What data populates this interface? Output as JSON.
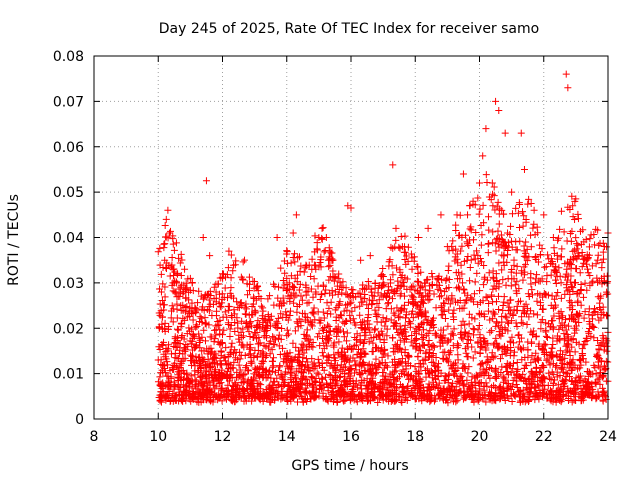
{
  "chart_data": {
    "type": "scatter",
    "title": "Day 245 of 2025, Rate Of TEC Index for receiver samo",
    "xlabel": "GPS time / hours",
    "ylabel": "ROTI / TECUs",
    "xlim": [
      8,
      24
    ],
    "ylim": [
      0,
      0.08
    ],
    "xticks": [
      8,
      10,
      12,
      14,
      16,
      18,
      20,
      22,
      24
    ],
    "xtick_labels": [
      "8",
      "10",
      "12",
      "14",
      "16",
      "18",
      "20",
      "22",
      "24"
    ],
    "yticks": [
      0,
      0.01,
      0.02,
      0.03,
      0.04,
      0.05,
      0.06,
      0.07,
      0.08
    ],
    "ytick_labels": [
      "0",
      "0.01",
      "0.02",
      "0.03",
      "0.04",
      "0.05",
      "0.06",
      "0.07",
      "0.08"
    ],
    "grid": true,
    "marker": "plus",
    "marker_color": "#ff0000",
    "series": [
      {
        "values": [
          [
            10.0,
            0.013
          ],
          [
            10.1,
            0.028
          ],
          [
            10.2,
            0.035
          ],
          [
            10.25,
            0.044
          ],
          [
            10.3,
            0.046
          ],
          [
            10.35,
            0.041
          ],
          [
            10.5,
            0.03
          ],
          [
            10.7,
            0.025
          ],
          [
            11.0,
            0.031
          ],
          [
            11.2,
            0.024
          ],
          [
            11.4,
            0.04
          ],
          [
            11.5,
            0.0525
          ],
          [
            11.6,
            0.036
          ],
          [
            11.8,
            0.028
          ],
          [
            12.0,
            0.032
          ],
          [
            12.2,
            0.037
          ],
          [
            12.4,
            0.034
          ],
          [
            12.6,
            0.025
          ],
          [
            13.0,
            0.019
          ],
          [
            13.3,
            0.022
          ],
          [
            13.7,
            0.04
          ],
          [
            14.0,
            0.031
          ],
          [
            14.2,
            0.041
          ],
          [
            14.3,
            0.045
          ],
          [
            14.6,
            0.028
          ],
          [
            15.0,
            0.04
          ],
          [
            15.1,
            0.042
          ],
          [
            15.3,
            0.035
          ],
          [
            15.6,
            0.031
          ],
          [
            15.9,
            0.047
          ],
          [
            16.0,
            0.0465
          ],
          [
            16.3,
            0.035
          ],
          [
            16.6,
            0.036
          ],
          [
            17.0,
            0.03
          ],
          [
            17.3,
            0.056
          ],
          [
            17.4,
            0.042
          ],
          [
            17.6,
            0.038
          ],
          [
            17.9,
            0.033
          ],
          [
            18.1,
            0.04
          ],
          [
            18.4,
            0.042
          ],
          [
            18.8,
            0.045
          ],
          [
            19.0,
            0.038
          ],
          [
            19.3,
            0.045
          ],
          [
            19.5,
            0.054
          ],
          [
            19.8,
            0.048
          ],
          [
            20.0,
            0.052
          ],
          [
            20.1,
            0.058
          ],
          [
            20.2,
            0.064
          ],
          [
            20.4,
            0.052
          ],
          [
            20.5,
            0.07
          ],
          [
            20.6,
            0.068
          ],
          [
            20.8,
            0.063
          ],
          [
            21.0,
            0.05
          ],
          [
            21.3,
            0.063
          ],
          [
            21.4,
            0.055
          ],
          [
            21.7,
            0.046
          ],
          [
            22.0,
            0.045
          ],
          [
            22.3,
            0.04
          ],
          [
            22.7,
            0.076
          ],
          [
            22.75,
            0.073
          ],
          [
            22.9,
            0.047
          ],
          [
            23.1,
            0.036
          ],
          [
            23.5,
            0.03
          ],
          [
            23.8,
            0.031
          ],
          [
            24.0,
            0.041
          ]
        ]
      }
    ]
  }
}
